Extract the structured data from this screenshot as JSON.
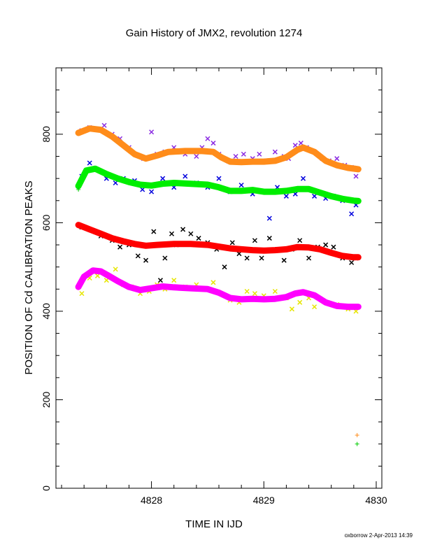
{
  "chart_data": {
    "type": "scatter",
    "title": "Gain History of JMX2, revolution 1274",
    "xlabel": "TIME IN IJD",
    "ylabel": "POSITION OF Cd CALIBRATION PEAKS",
    "footer": "oxborrow  2-Apr-2013 14:39",
    "xlim": [
      4827.15,
      4830.05
    ],
    "ylim": [
      0,
      950
    ],
    "xticks": [
      4828,
      4829,
      4830
    ],
    "yticks": [
      0,
      200,
      400,
      600,
      800
    ],
    "grid": false,
    "legend": "none",
    "series": [
      {
        "kind": "scatter",
        "marker": "x",
        "color": "#8a2be2",
        "x": [
          4827.38,
          4827.45,
          4827.52,
          4827.58,
          4827.65,
          4827.72,
          4827.8,
          4827.88,
          4827.93,
          4828.0,
          4828.05,
          4828.12,
          4828.2,
          4828.3,
          4828.4,
          4828.45,
          4828.5,
          4828.55,
          4828.6,
          4828.68,
          4828.75,
          4828.82,
          4828.9,
          4828.96,
          4829.02,
          4829.1,
          4829.18,
          4829.22,
          4829.28,
          4829.33,
          4829.38,
          4829.45,
          4829.52,
          4829.58,
          4829.65,
          4829.72,
          4829.78,
          4829.82
        ],
        "y": [
          808,
          815,
          812,
          820,
          800,
          790,
          770,
          752,
          745,
          805,
          755,
          760,
          770,
          755,
          750,
          770,
          790,
          780,
          755,
          740,
          750,
          755,
          745,
          755,
          740,
          760,
          750,
          745,
          775,
          780,
          770,
          760,
          745,
          740,
          745,
          730,
          725,
          705
        ]
      },
      {
        "kind": "line",
        "color": "#ff8c1a",
        "x": [
          4827.35,
          4827.45,
          4827.55,
          4827.65,
          4827.75,
          4827.85,
          4827.95,
          4828.05,
          4828.15,
          4828.3,
          4828.45,
          4828.55,
          4828.62,
          4828.7,
          4828.8,
          4828.9,
          4829.0,
          4829.1,
          4829.2,
          4829.3,
          4829.35,
          4829.45,
          4829.55,
          4829.65,
          4829.75,
          4829.84
        ],
        "y": [
          803,
          813,
          810,
          795,
          775,
          755,
          745,
          752,
          760,
          762,
          762,
          760,
          748,
          738,
          737,
          738,
          738,
          740,
          748,
          765,
          770,
          760,
          740,
          730,
          724,
          721
        ]
      },
      {
        "kind": "scatter",
        "marker": "x",
        "color": "#0000dd",
        "x": [
          4827.38,
          4827.45,
          4827.52,
          4827.6,
          4827.68,
          4827.75,
          4827.85,
          4827.92,
          4828.0,
          4828.1,
          4828.2,
          4828.3,
          4828.4,
          4828.5,
          4828.6,
          4828.7,
          4828.8,
          4828.9,
          4829.0,
          4829.05,
          4829.12,
          4829.2,
          4829.28,
          4829.35,
          4829.45,
          4829.55,
          4829.62,
          4829.7,
          4829.78,
          4829.82
        ],
        "y": [
          705,
          735,
          720,
          700,
          690,
          700,
          695,
          675,
          670,
          700,
          680,
          705,
          690,
          680,
          700,
          670,
          685,
          665,
          670,
          610,
          680,
          660,
          665,
          700,
          660,
          655,
          660,
          650,
          620,
          640
        ]
      },
      {
        "kind": "line",
        "color": "#00ee00",
        "x": [
          4827.35,
          4827.42,
          4827.5,
          4827.6,
          4827.7,
          4827.8,
          4827.9,
          4828.0,
          4828.1,
          4828.2,
          4828.35,
          4828.5,
          4828.6,
          4828.7,
          4828.8,
          4828.9,
          4829.0,
          4829.1,
          4829.2,
          4829.3,
          4829.4,
          4829.5,
          4829.6,
          4829.7,
          4829.8,
          4829.84
        ],
        "y": [
          683,
          718,
          722,
          710,
          700,
          692,
          686,
          684,
          688,
          690,
          688,
          686,
          680,
          672,
          672,
          674,
          670,
          670,
          672,
          676,
          676,
          668,
          660,
          654,
          650,
          649
        ]
      },
      {
        "kind": "scatter",
        "marker": "x",
        "color": "#000000",
        "x": [
          4827.38,
          4827.45,
          4827.55,
          4827.65,
          4827.72,
          4827.8,
          4827.88,
          4827.95,
          4828.02,
          4828.08,
          4828.12,
          4828.18,
          4828.22,
          4828.28,
          4828.35,
          4828.42,
          4828.5,
          4828.58,
          4828.65,
          4828.72,
          4828.78,
          4828.85,
          4828.92,
          4828.98,
          4829.05,
          4829.12,
          4829.18,
          4829.25,
          4829.32,
          4829.4,
          4829.48,
          4829.55,
          4829.62,
          4829.7,
          4829.78,
          4829.82
        ],
        "y": [
          590,
          585,
          570,
          560,
          545,
          550,
          525,
          515,
          580,
          470,
          520,
          575,
          550,
          585,
          575,
          565,
          555,
          540,
          500,
          555,
          530,
          520,
          560,
          520,
          565,
          540,
          515,
          540,
          560,
          520,
          545,
          550,
          545,
          520,
          510,
          520
        ]
      },
      {
        "kind": "line",
        "color": "#ff0000",
        "x": [
          4827.35,
          4827.45,
          4827.55,
          4827.65,
          4827.75,
          4827.85,
          4827.95,
          4828.05,
          4828.2,
          4828.35,
          4828.5,
          4828.6,
          4828.7,
          4828.8,
          4828.9,
          4829.0,
          4829.1,
          4829.2,
          4829.3,
          4829.4,
          4829.5,
          4829.6,
          4829.7,
          4829.8,
          4829.84
        ],
        "y": [
          595,
          585,
          575,
          565,
          558,
          552,
          548,
          550,
          552,
          552,
          550,
          546,
          542,
          540,
          538,
          537,
          538,
          540,
          545,
          544,
          540,
          532,
          525,
          522,
          522
        ]
      },
      {
        "kind": "scatter",
        "marker": "x",
        "color": "#e6e600",
        "x": [
          4827.38,
          4827.45,
          4827.52,
          4827.6,
          4827.68,
          4827.75,
          4827.82,
          4827.9,
          4827.98,
          4828.05,
          4828.12,
          4828.2,
          4828.3,
          4828.4,
          4828.48,
          4828.55,
          4828.62,
          4828.7,
          4828.78,
          4828.85,
          4828.92,
          4829.0,
          4829.1,
          4829.2,
          4829.25,
          4829.32,
          4829.4,
          4829.45,
          4829.55,
          4829.65,
          4829.75,
          4829.82
        ],
        "y": [
          440,
          475,
          480,
          470,
          495,
          460,
          455,
          440,
          445,
          460,
          450,
          470,
          455,
          460,
          450,
          465,
          440,
          425,
          420,
          445,
          440,
          435,
          445,
          430,
          405,
          420,
          430,
          410,
          420,
          415,
          405,
          400
        ]
      },
      {
        "kind": "line",
        "color": "#ff00ff",
        "x": [
          4827.35,
          4827.4,
          4827.48,
          4827.55,
          4827.62,
          4827.7,
          4827.8,
          4827.9,
          4828.0,
          4828.1,
          4828.2,
          4828.35,
          4828.5,
          4828.6,
          4828.7,
          4828.8,
          4828.9,
          4829.0,
          4829.1,
          4829.2,
          4829.28,
          4829.35,
          4829.45,
          4829.55,
          4829.65,
          4829.75,
          4829.84
        ],
        "y": [
          455,
          478,
          492,
          490,
          480,
          468,
          455,
          448,
          452,
          456,
          454,
          452,
          450,
          442,
          430,
          427,
          428,
          427,
          428,
          432,
          440,
          443,
          436,
          420,
          412,
          410,
          410
        ]
      },
      {
        "kind": "scatter",
        "marker": "+",
        "color": "#ff8c1a",
        "x": [
          4829.83
        ],
        "y": [
          120
        ]
      },
      {
        "kind": "scatter",
        "marker": "+",
        "color": "#00cc00",
        "x": [
          4829.83,
          4827.35
        ],
        "y": [
          100,
          675
        ]
      }
    ]
  }
}
